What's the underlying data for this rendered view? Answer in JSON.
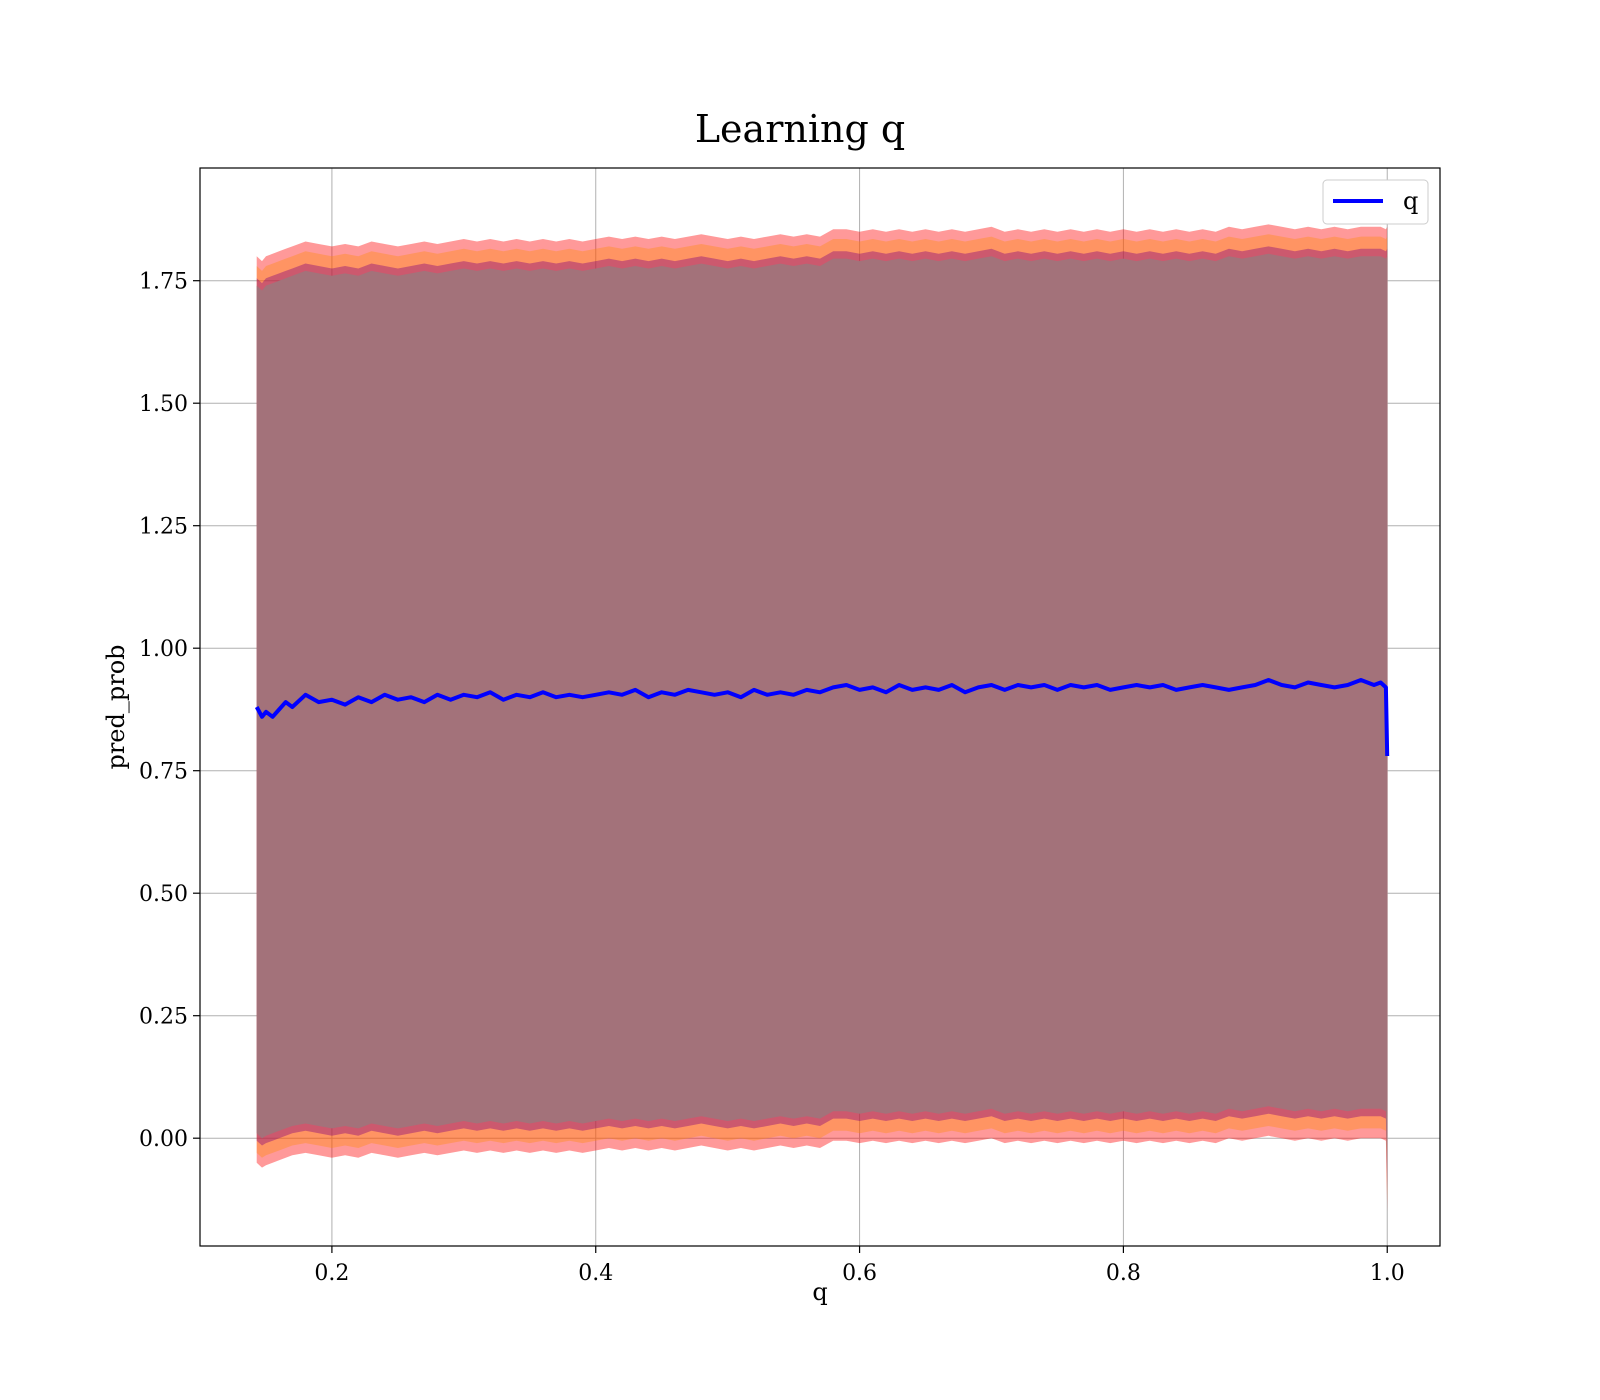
{
  "chart_data": {
    "type": "line",
    "title": "Learning q",
    "xlabel": "q",
    "ylabel": "pred_prob",
    "xlim": [
      0.1,
      1.04
    ],
    "ylim": [
      -0.22,
      1.98
    ],
    "x_ticks": [
      0.2,
      0.4,
      0.6,
      0.8,
      1.0
    ],
    "x_tick_labels": [
      "0.2",
      "0.4",
      "0.6",
      "0.8",
      "1.0"
    ],
    "y_ticks": [
      0.0,
      0.25,
      0.5,
      0.75,
      1.0,
      1.25,
      1.5,
      1.75
    ],
    "y_tick_labels": [
      "0.00",
      "0.25",
      "0.50",
      "0.75",
      "1.00",
      "1.25",
      "1.50",
      "1.75"
    ],
    "grid": true,
    "legend": {
      "position": "top-right",
      "entries": [
        "q"
      ]
    },
    "colors": {
      "line": "#0000ff",
      "band_outer": "#ff0000",
      "band_middle": "#ff8c00",
      "band_inner": "#800080",
      "band_core": "#a3727a"
    },
    "series": [
      {
        "name": "q",
        "x": [
          0.143,
          0.147,
          0.15,
          0.155,
          0.16,
          0.165,
          0.17,
          0.18,
          0.19,
          0.2,
          0.21,
          0.22,
          0.23,
          0.24,
          0.25,
          0.26,
          0.27,
          0.28,
          0.29,
          0.3,
          0.31,
          0.32,
          0.33,
          0.34,
          0.35,
          0.36,
          0.37,
          0.38,
          0.39,
          0.4,
          0.41,
          0.42,
          0.43,
          0.44,
          0.45,
          0.46,
          0.47,
          0.48,
          0.49,
          0.5,
          0.51,
          0.52,
          0.53,
          0.54,
          0.55,
          0.56,
          0.57,
          0.58,
          0.59,
          0.6,
          0.61,
          0.62,
          0.63,
          0.64,
          0.65,
          0.66,
          0.67,
          0.68,
          0.69,
          0.7,
          0.71,
          0.72,
          0.73,
          0.74,
          0.75,
          0.76,
          0.77,
          0.78,
          0.79,
          0.8,
          0.81,
          0.82,
          0.83,
          0.84,
          0.85,
          0.86,
          0.87,
          0.88,
          0.89,
          0.9,
          0.91,
          0.92,
          0.93,
          0.94,
          0.95,
          0.96,
          0.97,
          0.98,
          0.99,
          0.995,
          0.999,
          1.0
        ],
        "values": [
          0.88,
          0.86,
          0.87,
          0.86,
          0.875,
          0.89,
          0.88,
          0.905,
          0.89,
          0.895,
          0.885,
          0.9,
          0.89,
          0.905,
          0.895,
          0.9,
          0.89,
          0.905,
          0.895,
          0.905,
          0.9,
          0.91,
          0.895,
          0.905,
          0.9,
          0.91,
          0.9,
          0.905,
          0.9,
          0.905,
          0.91,
          0.905,
          0.915,
          0.9,
          0.91,
          0.905,
          0.915,
          0.91,
          0.905,
          0.91,
          0.9,
          0.915,
          0.905,
          0.91,
          0.905,
          0.915,
          0.91,
          0.92,
          0.925,
          0.915,
          0.92,
          0.91,
          0.925,
          0.915,
          0.92,
          0.915,
          0.925,
          0.91,
          0.92,
          0.925,
          0.915,
          0.925,
          0.92,
          0.925,
          0.915,
          0.925,
          0.92,
          0.925,
          0.915,
          0.92,
          0.925,
          0.92,
          0.925,
          0.915,
          0.92,
          0.925,
          0.92,
          0.915,
          0.92,
          0.925,
          0.935,
          0.925,
          0.92,
          0.93,
          0.925,
          0.92,
          0.925,
          0.935,
          0.925,
          0.93,
          0.92,
          0.78
        ],
        "band_upper": [
          1.8,
          1.79,
          1.8,
          1.805,
          1.81,
          1.815,
          1.82,
          1.83,
          1.825,
          1.82,
          1.825,
          1.82,
          1.83,
          1.825,
          1.82,
          1.825,
          1.83,
          1.825,
          1.83,
          1.835,
          1.83,
          1.835,
          1.83,
          1.835,
          1.83,
          1.835,
          1.83,
          1.835,
          1.83,
          1.835,
          1.84,
          1.835,
          1.84,
          1.835,
          1.84,
          1.835,
          1.84,
          1.845,
          1.84,
          1.835,
          1.84,
          1.835,
          1.84,
          1.845,
          1.84,
          1.845,
          1.84,
          1.855,
          1.855,
          1.85,
          1.855,
          1.85,
          1.855,
          1.85,
          1.855,
          1.85,
          1.855,
          1.85,
          1.855,
          1.86,
          1.85,
          1.855,
          1.85,
          1.855,
          1.85,
          1.855,
          1.85,
          1.855,
          1.85,
          1.855,
          1.85,
          1.855,
          1.85,
          1.855,
          1.85,
          1.855,
          1.85,
          1.86,
          1.855,
          1.86,
          1.865,
          1.86,
          1.855,
          1.86,
          1.855,
          1.86,
          1.855,
          1.86,
          1.86,
          1.86,
          1.855,
          1.86
        ],
        "band_lower": [
          -0.05,
          -0.06,
          -0.055,
          -0.05,
          -0.045,
          -0.04,
          -0.035,
          -0.03,
          -0.035,
          -0.04,
          -0.035,
          -0.04,
          -0.03,
          -0.035,
          -0.04,
          -0.035,
          -0.03,
          -0.035,
          -0.03,
          -0.025,
          -0.03,
          -0.025,
          -0.03,
          -0.025,
          -0.03,
          -0.025,
          -0.03,
          -0.025,
          -0.03,
          -0.025,
          -0.02,
          -0.025,
          -0.02,
          -0.025,
          -0.02,
          -0.025,
          -0.02,
          -0.015,
          -0.02,
          -0.025,
          -0.02,
          -0.025,
          -0.02,
          -0.015,
          -0.02,
          -0.015,
          -0.02,
          -0.005,
          -0.005,
          -0.01,
          -0.005,
          -0.01,
          -0.005,
          -0.01,
          -0.005,
          -0.01,
          -0.005,
          -0.01,
          -0.005,
          0.0,
          -0.01,
          -0.005,
          -0.01,
          -0.005,
          -0.01,
          -0.005,
          -0.01,
          -0.005,
          -0.01,
          -0.005,
          -0.01,
          -0.005,
          -0.01,
          -0.005,
          -0.01,
          -0.005,
          -0.01,
          0.0,
          -0.005,
          0.0,
          0.005,
          0.0,
          -0.005,
          0.0,
          -0.005,
          0.0,
          -0.005,
          0.0,
          0.0,
          0.0,
          -0.005,
          -0.15
        ]
      }
    ]
  }
}
